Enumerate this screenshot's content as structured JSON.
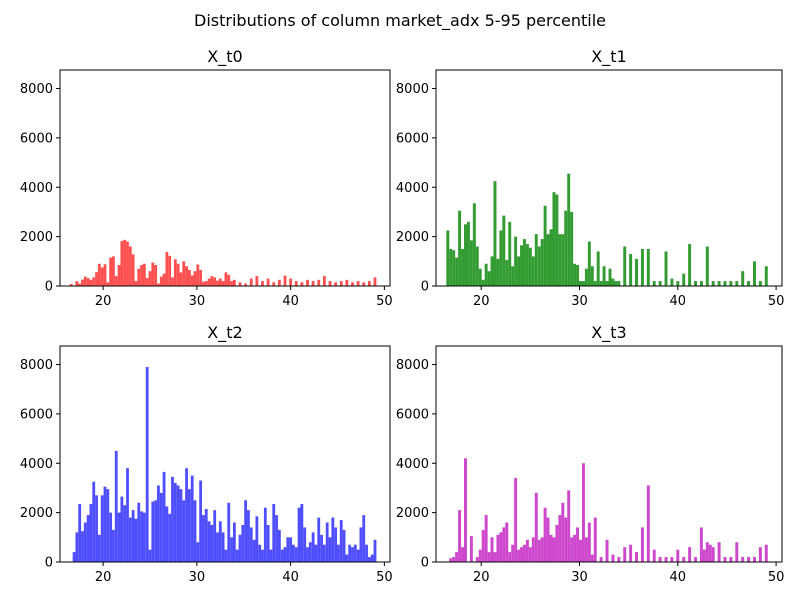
{
  "figure": {
    "suptitle": "Distributions of column market_adx 5-95 percentile"
  },
  "chart_data": [
    {
      "type": "bar",
      "title": "X_t0",
      "color": "#ff4d4d",
      "xlim": [
        15.4,
        50.6
      ],
      "ylim": [
        0,
        8750
      ],
      "xticks": [
        20,
        30,
        40,
        50
      ],
      "yticks": [
        0,
        2000,
        4000,
        6000,
        8000
      ],
      "x": [
        16.6,
        17.2,
        17.5,
        17.8,
        18.1,
        18.4,
        18.7,
        19.0,
        19.3,
        19.6,
        19.9,
        20.2,
        20.5,
        20.8,
        21.1,
        21.4,
        21.7,
        22.0,
        22.3,
        22.6,
        22.9,
        23.2,
        23.5,
        23.8,
        24.1,
        24.4,
        24.7,
        25.0,
        25.3,
        25.6,
        25.9,
        26.2,
        26.5,
        26.8,
        27.1,
        27.4,
        27.7,
        28.0,
        28.3,
        28.6,
        28.9,
        29.2,
        29.5,
        29.8,
        30.1,
        30.4,
        30.7,
        31.0,
        31.3,
        31.6,
        31.9,
        32.2,
        32.5,
        32.8,
        33.1,
        33.4,
        33.7,
        34.0,
        34.6,
        35.2,
        35.8,
        36.4,
        37.0,
        37.6,
        38.2,
        38.8,
        39.4,
        40.0,
        40.6,
        41.2,
        41.8,
        42.4,
        43.0,
        43.6,
        44.2,
        44.8,
        45.4,
        46.0,
        46.6,
        47.2,
        47.8,
        48.4,
        49.0
      ],
      "values": [
        80,
        200,
        100,
        260,
        380,
        320,
        250,
        350,
        560,
        900,
        750,
        880,
        150,
        1150,
        1200,
        400,
        850,
        1820,
        1870,
        1800,
        1600,
        1280,
        200,
        700,
        850,
        900,
        320,
        600,
        950,
        850,
        100,
        380,
        500,
        1380,
        1220,
        350,
        1080,
        900,
        550,
        1000,
        800,
        650,
        430,
        600,
        870,
        650,
        170,
        200,
        300,
        400,
        350,
        220,
        300,
        200,
        550,
        450,
        200,
        250,
        150,
        100,
        300,
        400,
        200,
        300,
        150,
        250,
        420,
        300,
        200,
        150,
        250,
        200,
        250,
        400,
        200,
        150,
        200,
        250,
        150,
        200,
        150,
        200,
        350
      ]
    },
    {
      "type": "bar",
      "title": "X_t1",
      "color": "#2e9a2e",
      "xlim": [
        15.4,
        50.6
      ],
      "ylim": [
        0,
        8750
      ],
      "xticks": [
        20,
        30,
        40,
        50
      ],
      "yticks": [
        0,
        2000,
        4000,
        6000,
        8000
      ],
      "x": [
        16.6,
        16.9,
        17.2,
        17.5,
        17.8,
        18.1,
        18.4,
        18.7,
        19.0,
        19.3,
        19.6,
        19.9,
        20.2,
        20.5,
        20.8,
        21.1,
        21.4,
        21.7,
        22.0,
        22.3,
        22.6,
        22.9,
        23.2,
        23.5,
        23.8,
        24.1,
        24.4,
        24.7,
        25.0,
        25.3,
        25.6,
        25.9,
        26.2,
        26.5,
        26.8,
        27.1,
        27.4,
        27.7,
        28.0,
        28.3,
        28.6,
        28.9,
        29.2,
        29.5,
        29.8,
        30.1,
        30.4,
        30.7,
        31.0,
        31.3,
        31.6,
        31.9,
        32.2,
        32.5,
        32.8,
        33.1,
        33.4,
        33.7,
        34.0,
        34.6,
        35.2,
        35.8,
        36.4,
        37.0,
        37.6,
        38.2,
        38.8,
        39.4,
        40.0,
        40.6,
        41.2,
        41.8,
        42.4,
        43.0,
        43.6,
        44.2,
        44.8,
        45.4,
        46.0,
        46.6,
        47.2,
        47.8,
        48.4,
        49.0
      ],
      "values": [
        2250,
        1500,
        1450,
        1150,
        3050,
        1500,
        2500,
        2600,
        1850,
        3350,
        1600,
        700,
        250,
        900,
        600,
        1200,
        4250,
        1100,
        2250,
        2850,
        1050,
        2600,
        800,
        2000,
        1200,
        1650,
        1900,
        1700,
        1550,
        1200,
        2100,
        1600,
        1900,
        3250,
        2100,
        2300,
        3800,
        3700,
        2100,
        2100,
        3050,
        4550,
        3000,
        900,
        850,
        200,
        200,
        700,
        1800,
        800,
        200,
        1400,
        200,
        800,
        200,
        700,
        300,
        200,
        200,
        1600,
        1300,
        1100,
        1500,
        1500,
        200,
        200,
        1400,
        300,
        200,
        500,
        1700,
        200,
        200,
        1600,
        200,
        200,
        200,
        200,
        200,
        600,
        200,
        1000,
        200,
        800
      ]
    },
    {
      "type": "bar",
      "title": "X_t2",
      "color": "#4a4aff",
      "xlim": [
        15.4,
        50.6
      ],
      "ylim": [
        0,
        8750
      ],
      "xticks": [
        20,
        30,
        40,
        50
      ],
      "yticks": [
        0,
        2000,
        4000,
        6000,
        8000
      ],
      "x": [
        16.9,
        17.2,
        17.5,
        17.8,
        18.1,
        18.4,
        18.7,
        19.0,
        19.3,
        19.6,
        19.9,
        20.2,
        20.5,
        20.8,
        21.1,
        21.4,
        21.7,
        22.0,
        22.3,
        22.6,
        22.9,
        23.2,
        23.5,
        23.8,
        24.1,
        24.4,
        24.7,
        25.0,
        25.3,
        25.6,
        25.9,
        26.2,
        26.5,
        26.8,
        27.1,
        27.4,
        27.7,
        28.0,
        28.3,
        28.6,
        28.9,
        29.2,
        29.5,
        29.8,
        30.1,
        30.4,
        30.7,
        31.0,
        31.3,
        31.6,
        31.9,
        32.2,
        32.5,
        32.8,
        33.1,
        33.4,
        33.7,
        34.0,
        34.3,
        34.6,
        34.9,
        35.2,
        35.5,
        35.8,
        36.1,
        36.4,
        36.7,
        37.0,
        37.3,
        37.6,
        37.9,
        38.2,
        38.5,
        38.8,
        39.1,
        39.4,
        39.7,
        40.0,
        40.3,
        40.6,
        40.9,
        41.2,
        41.5,
        41.8,
        42.1,
        42.4,
        42.7,
        43.0,
        43.3,
        43.6,
        43.9,
        44.2,
        44.5,
        44.8,
        45.1,
        45.4,
        45.7,
        46.0,
        46.3,
        46.6,
        46.9,
        47.2,
        47.5,
        47.8,
        48.1,
        48.4,
        48.7,
        49.0
      ],
      "values": [
        400,
        1200,
        2350,
        1250,
        1600,
        1900,
        2350,
        3250,
        2700,
        1100,
        2700,
        3050,
        2950,
        2000,
        1300,
        4500,
        2000,
        2650,
        2300,
        3800,
        1800,
        2100,
        1750,
        2400,
        2050,
        2000,
        7900,
        500,
        2450,
        2500,
        3100,
        2800,
        3650,
        2250,
        1950,
        3450,
        3200,
        3100,
        2950,
        2500,
        3800,
        2950,
        3500,
        2500,
        800,
        3300,
        1900,
        2150,
        1650,
        1500,
        2100,
        1200,
        1650,
        1200,
        500,
        2400,
        1000,
        1600,
        500,
        1100,
        1500,
        2500,
        2100,
        1400,
        900,
        1850,
        700,
        500,
        2200,
        1500,
        500,
        2350,
        1900,
        1300,
        500,
        600,
        1000,
        1000,
        700,
        600,
        2200,
        2350,
        1400,
        600,
        800,
        1200,
        700,
        1800,
        1100,
        700,
        1600,
        1000,
        1800,
        1400,
        700,
        1700,
        1300,
        300,
        700,
        600,
        700,
        500,
        1400,
        1900,
        700,
        200,
        300,
        900
      ]
    },
    {
      "type": "bar",
      "title": "X_t3",
      "color": "#cc44cc",
      "xlim": [
        15.4,
        50.6
      ],
      "ylim": [
        0,
        8750
      ],
      "xticks": [
        20,
        30,
        40,
        50
      ],
      "yticks": [
        0,
        2000,
        4000,
        6000,
        8000
      ],
      "x": [
        16.9,
        17.2,
        17.5,
        17.8,
        18.1,
        18.4,
        19.0,
        19.6,
        19.9,
        20.2,
        20.5,
        20.8,
        21.1,
        21.4,
        21.7,
        22.0,
        22.3,
        22.6,
        22.9,
        23.2,
        23.5,
        23.8,
        24.1,
        24.4,
        24.7,
        25.0,
        25.3,
        25.6,
        25.9,
        26.2,
        26.5,
        26.8,
        27.1,
        27.4,
        27.7,
        28.0,
        28.3,
        28.6,
        28.9,
        29.2,
        29.5,
        29.8,
        30.1,
        30.4,
        30.7,
        31.0,
        31.3,
        31.6,
        32.2,
        32.8,
        33.4,
        34.0,
        34.6,
        35.2,
        35.8,
        36.4,
        37.0,
        37.6,
        38.2,
        38.8,
        39.4,
        40.0,
        40.6,
        41.2,
        41.8,
        42.4,
        42.7,
        43.0,
        43.3,
        43.6,
        44.2,
        44.8,
        45.4,
        46.0,
        46.6,
        47.2,
        47.8,
        48.4,
        49.0
      ],
      "values": [
        150,
        200,
        400,
        2100,
        600,
        4200,
        1050,
        200,
        500,
        1300,
        1900,
        400,
        1000,
        400,
        1100,
        1200,
        1400,
        1600,
        400,
        700,
        3400,
        500,
        600,
        700,
        900,
        600,
        1000,
        2800,
        900,
        1000,
        2200,
        1800,
        1100,
        1000,
        1500,
        1900,
        2400,
        1800,
        2900,
        1000,
        1100,
        1400,
        900,
        4000,
        1000,
        1600,
        300,
        1800,
        200,
        900,
        300,
        200,
        600,
        700,
        400,
        1400,
        3100,
        500,
        200,
        200,
        200,
        500,
        200,
        600,
        200,
        1400,
        500,
        800,
        700,
        600,
        800,
        200,
        200,
        800,
        200,
        200,
        200,
        600,
        700
      ]
    }
  ]
}
